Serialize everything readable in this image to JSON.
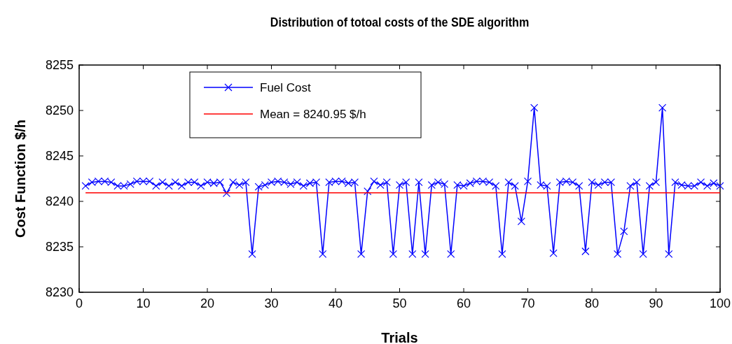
{
  "chart_data": {
    "type": "line",
    "title": "Distribution of totoal costs of the SDE algorithm",
    "xlabel": "Trials",
    "ylabel": "Cost Function $/h",
    "x": [
      1,
      2,
      3,
      4,
      5,
      6,
      7,
      8,
      9,
      10,
      11,
      12,
      13,
      14,
      15,
      16,
      17,
      18,
      19,
      20,
      21,
      22,
      23,
      24,
      25,
      26,
      27,
      28,
      29,
      30,
      31,
      32,
      33,
      34,
      35,
      36,
      37,
      38,
      39,
      40,
      41,
      42,
      43,
      44,
      45,
      46,
      47,
      48,
      49,
      50,
      51,
      52,
      53,
      54,
      55,
      56,
      57,
      58,
      59,
      60,
      61,
      62,
      63,
      64,
      65,
      66,
      67,
      68,
      69,
      70,
      71,
      72,
      73,
      74,
      75,
      76,
      77,
      78,
      79,
      80,
      81,
      82,
      83,
      84,
      85,
      86,
      87,
      88,
      89,
      90,
      91,
      92,
      93,
      94,
      95,
      96,
      97,
      98,
      99,
      100
    ],
    "series": [
      {
        "name": "Fuel Cost",
        "color": "#0000ff",
        "marker": "cross",
        "values": [
          8241.7,
          8242.1,
          8242.2,
          8242.2,
          8242.1,
          8241.7,
          8241.7,
          8241.9,
          8242.2,
          8242.2,
          8242.2,
          8241.7,
          8242.1,
          8241.7,
          8242.1,
          8241.7,
          8242.1,
          8242.1,
          8241.7,
          8242.1,
          8242.0,
          8242.1,
          8240.9,
          8242.1,
          8241.8,
          8242.1,
          8234.2,
          8241.6,
          8241.8,
          8242.1,
          8242.2,
          8242.1,
          8241.9,
          8242.1,
          8241.7,
          8242.0,
          8242.1,
          8234.2,
          8242.1,
          8242.2,
          8242.2,
          8242.0,
          8242.1,
          8234.2,
          8241.1,
          8242.2,
          8241.8,
          8242.1,
          8234.2,
          8241.8,
          8242.1,
          8234.2,
          8242.1,
          8234.2,
          8241.8,
          8242.1,
          8241.9,
          8234.2,
          8241.8,
          8241.7,
          8242.0,
          8242.2,
          8242.2,
          8242.1,
          8241.7,
          8234.2,
          8242.1,
          8241.7,
          8237.8,
          8242.2,
          8250.3,
          8241.8,
          8241.7,
          8234.3,
          8242.1,
          8242.2,
          8242.1,
          8241.7,
          8234.5,
          8242.1,
          8241.8,
          8242.1,
          8242.1,
          8234.2,
          8236.7,
          8241.7,
          8242.1,
          8234.2,
          8241.7,
          8242.1,
          8250.3,
          8234.2,
          8242.1,
          8241.8,
          8241.7,
          8241.7,
          8242.1,
          8241.7,
          8242.0,
          8241.7
        ]
      },
      {
        "name": "Mean = 8240.95 $/h",
        "color": "#ff0000",
        "x": [
          1,
          100
        ],
        "values": [
          8240.95,
          8240.95
        ]
      }
    ],
    "xlim": [
      0,
      100
    ],
    "xticks": [
      0,
      10,
      20,
      30,
      40,
      50,
      60,
      70,
      80,
      90,
      100
    ],
    "ylim": [
      8230,
      8255
    ],
    "yticks": [
      8230,
      8235,
      8240,
      8245,
      8250,
      8255
    ],
    "legend": "top left"
  }
}
